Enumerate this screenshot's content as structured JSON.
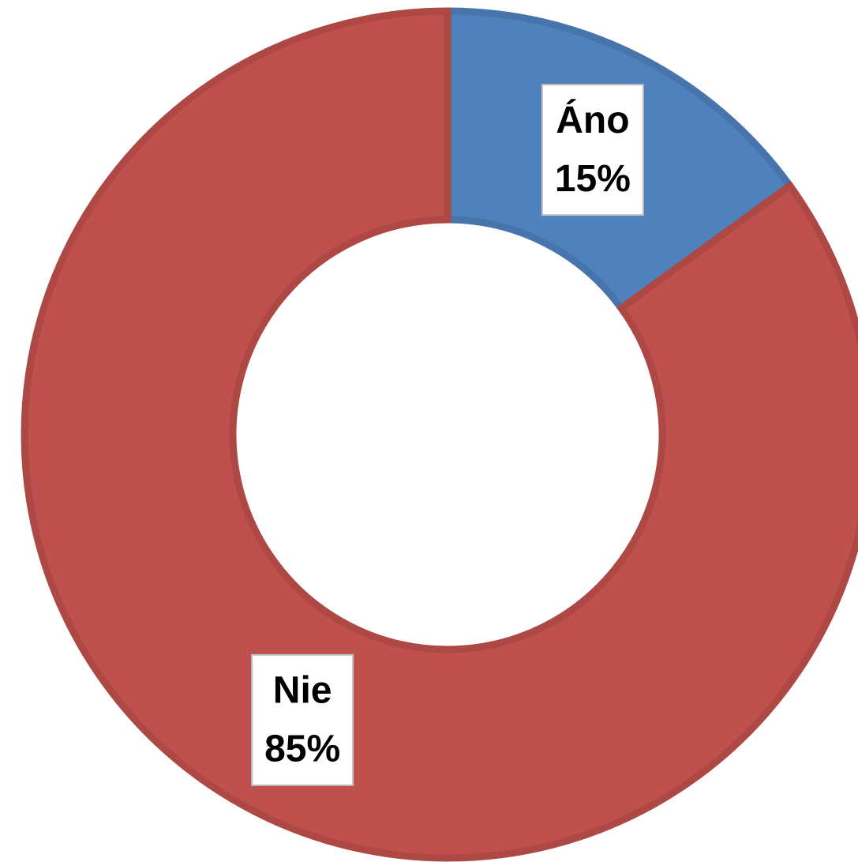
{
  "chart_data": {
    "type": "donut",
    "categories": [
      "Áno",
      "Nie"
    ],
    "values": [
      15,
      85
    ],
    "value_labels": [
      "15%",
      "85%"
    ],
    "colors": [
      "#4f81bd",
      "#c0504d"
    ]
  }
}
